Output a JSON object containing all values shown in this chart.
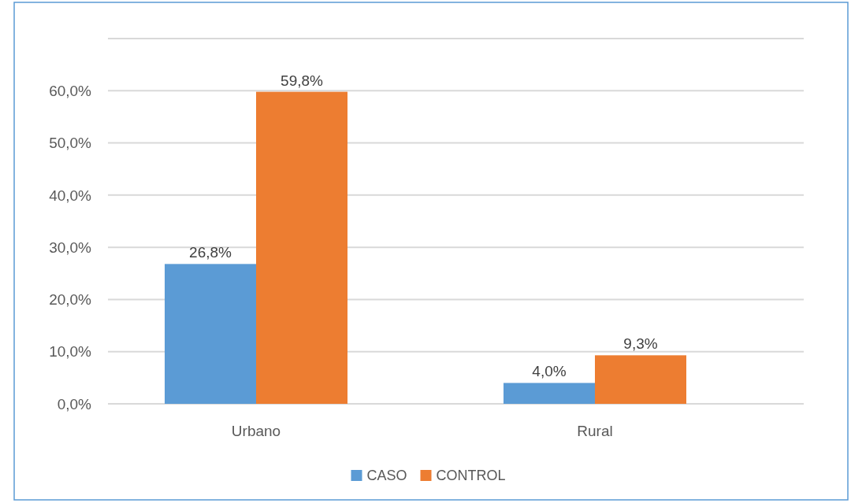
{
  "chart_data": {
    "type": "bar",
    "categories": [
      "Urbano",
      "Rural"
    ],
    "series": [
      {
        "name": "CASO",
        "color": "#5b9bd5",
        "values": [
          26.8,
          4.0
        ],
        "value_labels": [
          "26,8%",
          "4,0%"
        ]
      },
      {
        "name": "CONTROL",
        "color": "#ed7d31",
        "values": [
          59.8,
          9.3
        ],
        "value_labels": [
          "59,8%",
          "9,3%"
        ]
      }
    ],
    "ylim": [
      0,
      70
    ],
    "yticks": [
      {
        "value": 0,
        "label": "0,0%"
      },
      {
        "value": 10,
        "label": "10,0%"
      },
      {
        "value": 20,
        "label": "20,0%"
      },
      {
        "value": 30,
        "label": "30,0%"
      },
      {
        "value": 40,
        "label": "40,0%"
      },
      {
        "value": 50,
        "label": "50,0%"
      },
      {
        "value": 60,
        "label": "60,0%"
      },
      {
        "value": 70,
        "label": null
      }
    ],
    "grid": "y",
    "legend": "bottom"
  }
}
